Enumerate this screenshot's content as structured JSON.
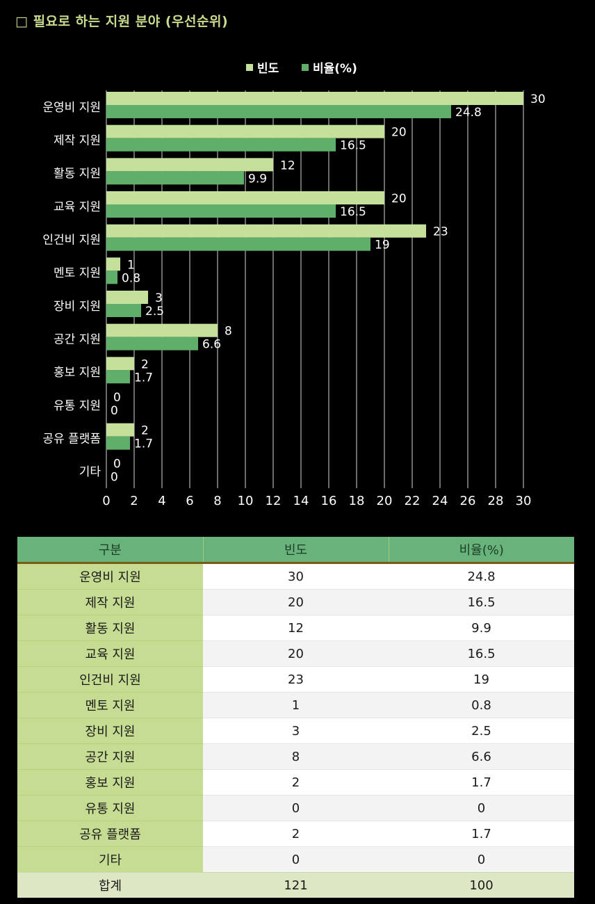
{
  "title": "□ 필요로 하는 지원 분야 (우선순위)",
  "colors": {
    "freq": "#c5e09a",
    "pct": "#5faf6b",
    "grid": "#d8d8d8",
    "label": "#ffffff",
    "title": "#c9dc8e"
  },
  "chart_data": {
    "type": "bar",
    "orientation": "horizontal",
    "categories": [
      "운영비 지원",
      "제작 지원",
      "활동 지원",
      "교육 지원",
      "인건비 지원",
      "멘토 지원",
      "장비 지원",
      "공간 지원",
      "홍보 지원",
      "유통 지원",
      "공유 플랫폼",
      "기타"
    ],
    "series": [
      {
        "name": "빈도",
        "values": [
          30,
          20,
          12,
          20,
          23,
          1,
          3,
          8,
          2,
          0,
          2,
          0
        ]
      },
      {
        "name": "비율(%)",
        "values": [
          24.8,
          16.5,
          9.9,
          16.5,
          19,
          0.8,
          2.5,
          6.6,
          1.7,
          0,
          1.7,
          0
        ]
      }
    ],
    "xlim": [
      0,
      30
    ],
    "xticks": [
      0,
      2,
      4,
      6,
      8,
      10,
      12,
      14,
      16,
      18,
      20,
      22,
      24,
      26,
      28,
      30
    ],
    "legend": "top-center",
    "grid": true
  },
  "table": {
    "headers": [
      "구분",
      "빈도",
      "비율(%)"
    ],
    "rows": [
      [
        "운영비 지원",
        "30",
        "24.8"
      ],
      [
        "제작 지원",
        "20",
        "16.5"
      ],
      [
        "활동 지원",
        "12",
        "9.9"
      ],
      [
        "교육 지원",
        "20",
        "16.5"
      ],
      [
        "인건비 지원",
        "23",
        "19"
      ],
      [
        "멘토 지원",
        "1",
        "0.8"
      ],
      [
        "장비 지원",
        "3",
        "2.5"
      ],
      [
        "공간 지원",
        "8",
        "6.6"
      ],
      [
        "홍보 지원",
        "2",
        "1.7"
      ],
      [
        "유통 지원",
        "0",
        "0"
      ],
      [
        "공유 플랫폼",
        "2",
        "1.7"
      ],
      [
        "기타",
        "0",
        "0"
      ]
    ],
    "total": [
      "합계",
      "121",
      "100"
    ]
  }
}
